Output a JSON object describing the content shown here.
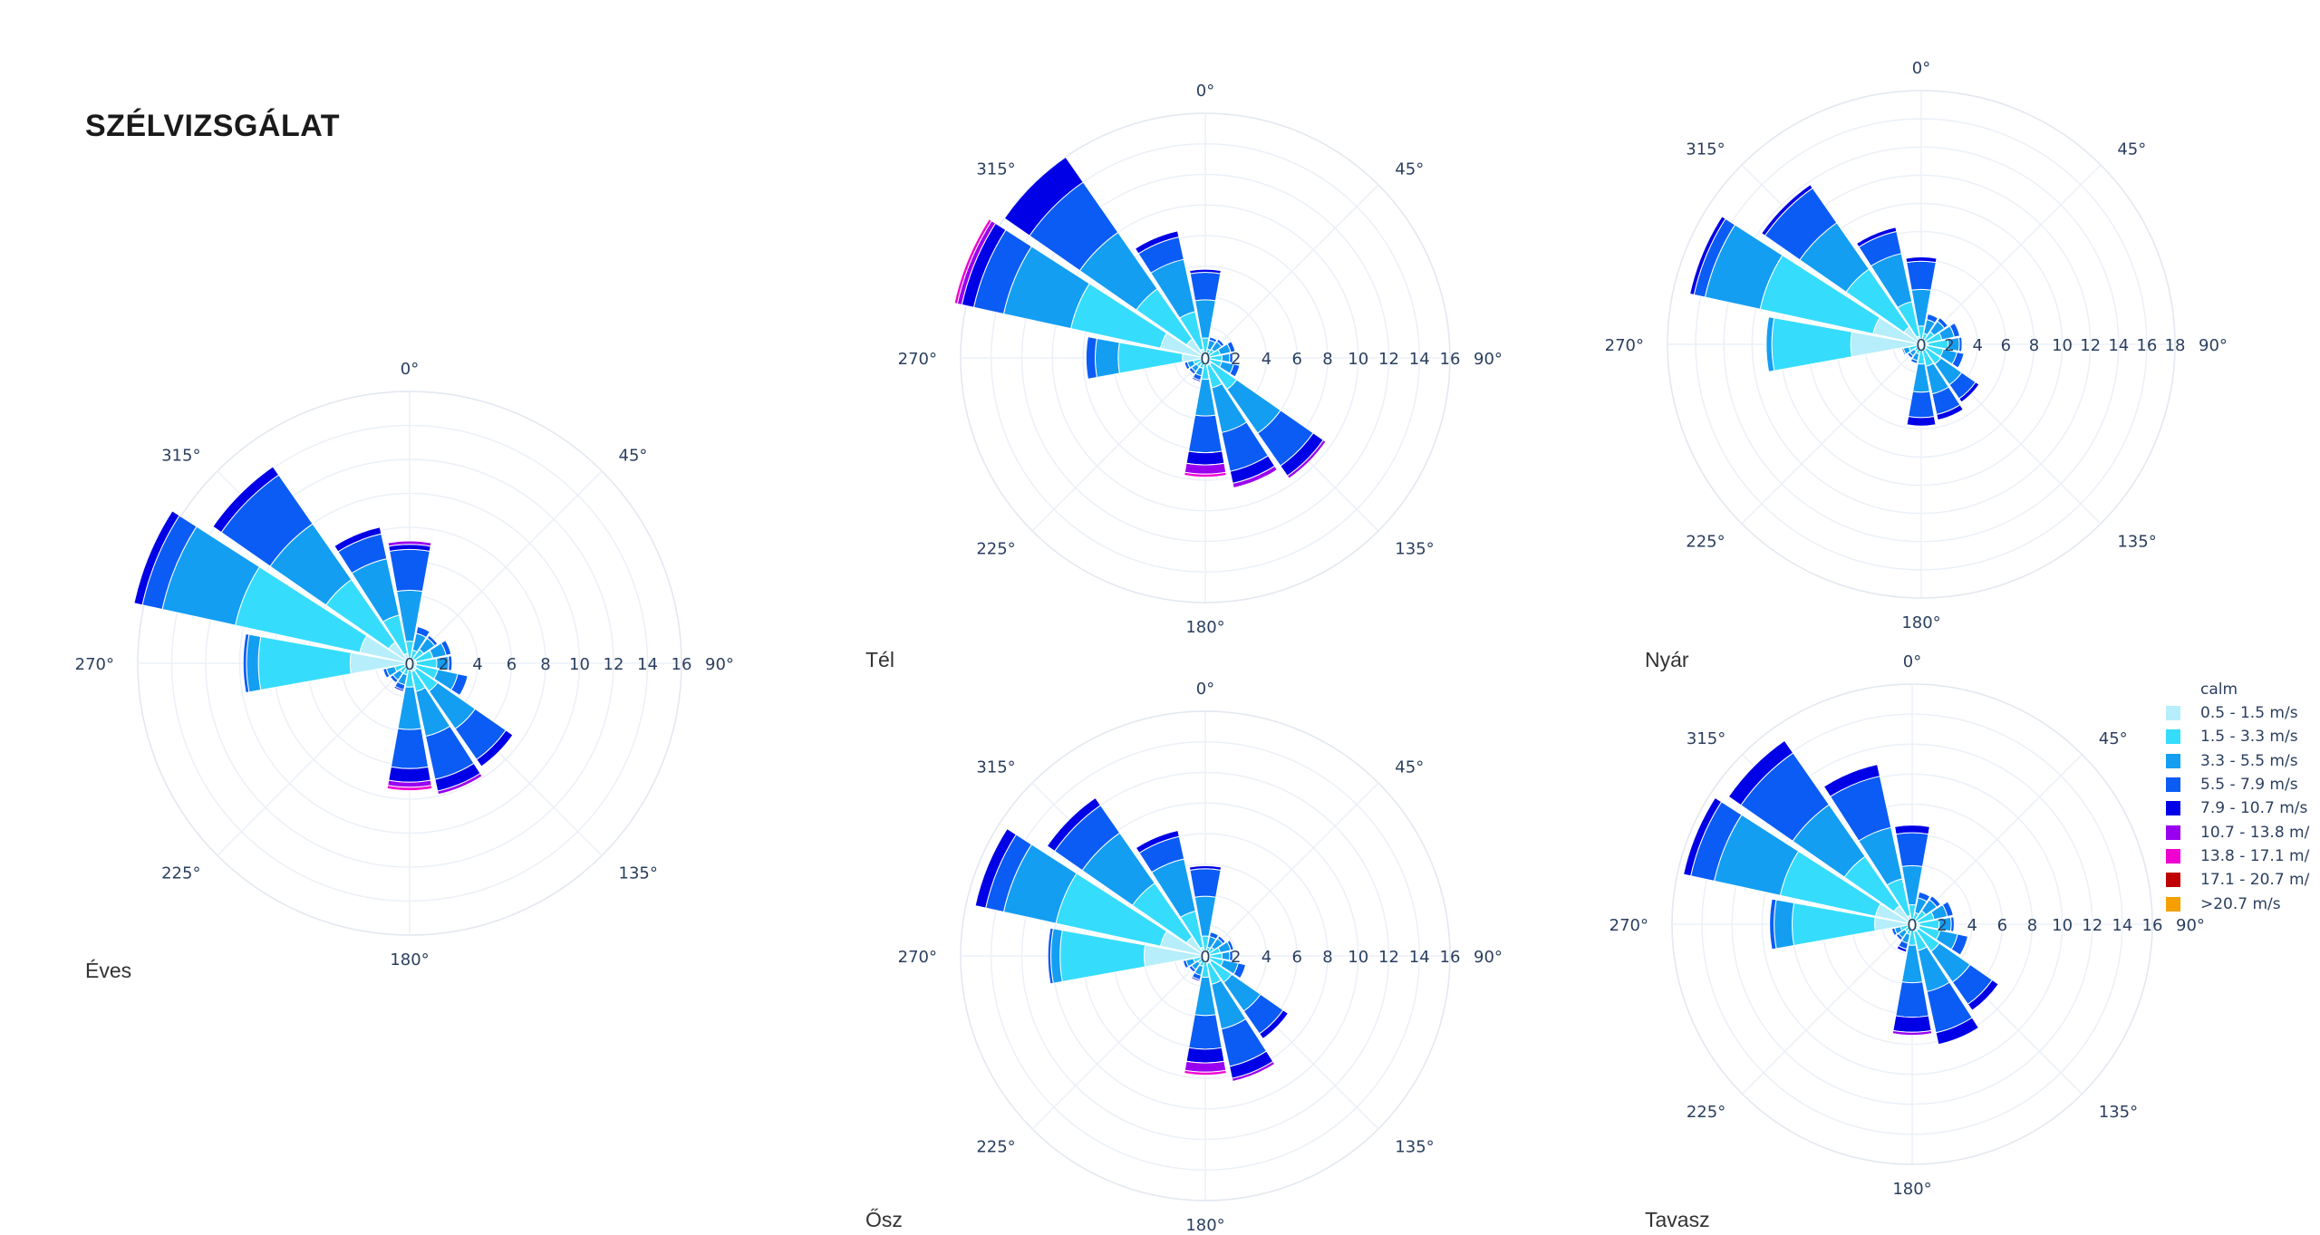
{
  "page": {
    "title": "SZÉLVIZSGÁLAT"
  },
  "legend": {
    "title": "calm",
    "items": [
      {
        "label": "0.5 - 1.5 m/s",
        "color": "#b6eefb"
      },
      {
        "label": "1.5 - 3.3 m/s",
        "color": "#36dcfc"
      },
      {
        "label": "3.3 - 5.5 m/s",
        "color": "#139ef2"
      },
      {
        "label": "5.5 - 7.9 m/s",
        "color": "#0b5cf5"
      },
      {
        "label": "7.9 - 10.7 m/s",
        "color": "#0000e6"
      },
      {
        "label": "10.7 - 13.8 m/",
        "color": "#9a00f0"
      },
      {
        "label": "13.8 - 17.1 m/",
        "color": "#f000d0"
      },
      {
        "label": "17.1 - 20.7 m/",
        "color": "#c00000"
      },
      {
        "label": ">20.7 m/s",
        "color": "#f5a000"
      }
    ]
  },
  "chart_data": [
    {
      "type": "barpolar",
      "caption": "Éves",
      "angular_ticks": [
        "0°",
        "45°",
        "90°",
        "135°",
        "180°",
        "225°",
        "270°",
        "315°"
      ],
      "radial_ticks": [
        0,
        2,
        4,
        6,
        8,
        10,
        12,
        14,
        16
      ],
      "radial_range": [
        0,
        16
      ],
      "directions": [
        0,
        22.5,
        45,
        67.5,
        90,
        112.5,
        135,
        157.5,
        180,
        202.5,
        225,
        247.5,
        270,
        292.5,
        315,
        337.5
      ],
      "stacks": [
        [
          0.3,
          1.0,
          3.0,
          2.4,
          0.3,
          0.2
        ],
        [
          0.2,
          0.6,
          1.0,
          0.4
        ],
        [
          0.3,
          0.7,
          0.8,
          0.2
        ],
        [
          0.4,
          1.0,
          0.8,
          0.3
        ],
        [
          0.4,
          1.2,
          0.7,
          0.2
        ],
        [
          0.4,
          1.3,
          1.2,
          0.6
        ],
        [
          0.5,
          1.5,
          2.7,
          2.2,
          0.5
        ],
        [
          0.5,
          1.2,
          2.7,
          2.6,
          0.7,
          0.2
        ],
        [
          0.4,
          1.0,
          2.5,
          2.3,
          0.8,
          0.3,
          0.2
        ],
        [
          0.2,
          0.5,
          0.6,
          0.3,
          0.1
        ],
        [
          0.2,
          0.5,
          0.5,
          0.2
        ],
        [
          0.3,
          0.6,
          0.5,
          0.2
        ],
        [
          3.5,
          5.4,
          0.7,
          0.2
        ],
        [
          3.0,
          7.5,
          4.4,
          1.2,
          0.5
        ],
        [
          1.5,
          4.5,
          4.0,
          3.5,
          0.6
        ],
        [
          0.6,
          2.3,
          3.4,
          1.5,
          0.4
        ]
      ]
    },
    {
      "type": "barpolar",
      "caption": "Tél",
      "angular_ticks": [
        "0°",
        "45°",
        "90°",
        "135°",
        "180°",
        "225°",
        "270°",
        "315°"
      ],
      "radial_ticks": [
        0,
        2,
        4,
        6,
        8,
        10,
        12,
        14,
        16
      ],
      "radial_range": [
        0,
        16
      ],
      "directions": [
        0,
        22.5,
        45,
        67.5,
        90,
        112.5,
        135,
        157.5,
        180,
        202.5,
        225,
        247.5,
        270,
        292.5,
        315,
        337.5
      ],
      "stacks": [
        [
          0.3,
          1.0,
          2.5,
          1.8,
          0.2
        ],
        [
          0.2,
          0.4,
          0.6,
          0.2
        ],
        [
          0.2,
          0.5,
          0.6,
          0.2
        ],
        [
          0.3,
          0.7,
          0.7,
          0.3
        ],
        [
          0.3,
          0.8,
          0.5,
          0.2
        ],
        [
          0.3,
          0.8,
          0.8,
          0.4
        ],
        [
          0.5,
          2.0,
          3.5,
          2.6,
          0.8,
          0.2
        ],
        [
          0.5,
          1.5,
          3.0,
          2.6,
          0.8,
          0.3
        ],
        [
          0.4,
          1.0,
          2.4,
          2.4,
          0.8,
          0.6,
          0.2
        ],
        [
          0.2,
          0.5,
          0.5,
          0.3,
          0.1
        ],
        [
          0.2,
          0.5,
          0.4,
          0.2
        ],
        [
          0.3,
          0.5,
          0.4,
          0.2
        ],
        [
          1.5,
          4.2,
          1.5,
          0.6
        ],
        [
          3.0,
          6.0,
          4.5,
          2.0,
          0.8,
          0.3,
          0.2
        ],
        [
          1.5,
          4.0,
          4.5,
          4.0,
          2.0
        ],
        [
          0.6,
          2.5,
          3.5,
          1.5,
          0.4
        ]
      ]
    },
    {
      "type": "barpolar",
      "caption": "Nyár",
      "angular_ticks": [
        "0°",
        "45°",
        "90°",
        "135°",
        "180°",
        "225°",
        "270°",
        "315°"
      ],
      "radial_ticks": [
        0,
        2,
        4,
        6,
        8,
        10,
        12,
        14,
        16,
        18
      ],
      "radial_range": [
        0,
        18
      ],
      "directions": [
        0,
        22.5,
        45,
        67.5,
        90,
        112.5,
        135,
        157.5,
        180,
        202.5,
        225,
        247.5,
        270,
        292.5,
        315,
        337.5
      ],
      "stacks": [
        [
          0.3,
          1.0,
          2.6,
          2.0,
          0.3
        ],
        [
          0.2,
          0.6,
          1.0,
          0.4
        ],
        [
          0.3,
          0.8,
          0.9,
          0.3
        ],
        [
          0.4,
          1.1,
          0.9,
          0.4
        ],
        [
          0.5,
          1.4,
          0.8,
          0.2
        ],
        [
          0.4,
          1.2,
          1.0,
          0.5
        ],
        [
          0.4,
          1.3,
          1.8,
          1.2,
          0.3
        ],
        [
          0.4,
          1.2,
          2.0,
          1.5,
          0.4
        ],
        [
          0.4,
          1.0,
          2.0,
          1.8,
          0.6
        ],
        [
          0.2,
          0.5,
          0.5,
          0.2
        ],
        [
          0.2,
          0.4,
          0.4,
          0.2
        ],
        [
          0.3,
          0.6,
          0.4,
          0.1
        ],
        [
          5.0,
          5.6,
          0.4
        ],
        [
          3.5,
          8.2,
          4.0,
          0.8,
          0.3
        ],
        [
          1.5,
          5.0,
          4.0,
          3.0,
          0.3
        ],
        [
          0.6,
          2.5,
          3.5,
          1.6,
          0.3
        ]
      ]
    },
    {
      "type": "barpolar",
      "caption": "Ősz",
      "angular_ticks": [
        "0°",
        "45°",
        "90°",
        "135°",
        "180°",
        "225°",
        "270°",
        "315°"
      ],
      "radial_ticks": [
        0,
        2,
        4,
        6,
        8,
        10,
        12,
        14,
        16
      ],
      "radial_range": [
        0,
        16
      ],
      "directions": [
        0,
        22.5,
        45,
        67.5,
        90,
        112.5,
        135,
        157.5,
        180,
        202.5,
        225,
        247.5,
        270,
        292.5,
        315,
        337.5
      ],
      "stacks": [
        [
          0.3,
          1.0,
          2.6,
          1.8,
          0.2
        ],
        [
          0.2,
          0.4,
          0.7,
          0.3
        ],
        [
          0.2,
          0.5,
          0.7,
          0.2
        ],
        [
          0.3,
          0.7,
          0.7,
          0.2
        ],
        [
          0.3,
          0.8,
          0.5,
          0.2
        ],
        [
          0.3,
          0.9,
          1.0,
          0.5
        ],
        [
          0.5,
          1.6,
          2.3,
          1.8,
          0.4
        ],
        [
          0.5,
          1.4,
          3.0,
          2.5,
          0.8,
          0.2
        ],
        [
          0.4,
          1.0,
          2.5,
          2.2,
          0.9,
          0.6,
          0.2
        ],
        [
          0.2,
          0.5,
          0.6,
          0.3,
          0.1
        ],
        [
          0.2,
          0.4,
          0.5,
          0.2
        ],
        [
          0.3,
          0.5,
          0.5,
          0.2
        ],
        [
          4.0,
          5.5,
          0.6,
          0.2
        ],
        [
          3.0,
          7.0,
          3.5,
          1.2,
          0.7
        ],
        [
          1.5,
          4.3,
          4.0,
          2.2,
          0.6
        ],
        [
          0.6,
          2.4,
          3.5,
          1.5,
          0.4
        ]
      ]
    },
    {
      "type": "barpolar",
      "caption": "Tavasz",
      "angular_ticks": [
        "0°",
        "45°",
        "90°",
        "135°",
        "180°",
        "225°",
        "270°",
        "315°"
      ],
      "radial_ticks": [
        0,
        2,
        4,
        6,
        8,
        10,
        12,
        14,
        16
      ],
      "radial_range": [
        0,
        16
      ],
      "directions": [
        0,
        22.5,
        45,
        67.5,
        90,
        112.5,
        135,
        157.5,
        180,
        202.5,
        225,
        247.5,
        270,
        292.5,
        315,
        337.5
      ],
      "stacks": [
        [
          0.3,
          1.0,
          2.6,
          2.2,
          0.5
        ],
        [
          0.2,
          0.6,
          1.0,
          0.4
        ],
        [
          0.3,
          0.8,
          0.9,
          0.3
        ],
        [
          0.4,
          1.1,
          0.9,
          0.4
        ],
        [
          0.5,
          1.3,
          0.8,
          0.2
        ],
        [
          0.5,
          1.4,
          1.2,
          0.7
        ],
        [
          0.5,
          1.7,
          2.5,
          1.8,
          0.5
        ],
        [
          0.5,
          1.3,
          2.8,
          2.8,
          0.8
        ],
        [
          0.4,
          1.0,
          2.5,
          2.3,
          1.0,
          0.2
        ],
        [
          0.2,
          0.5,
          0.6,
          0.4,
          0.2
        ],
        [
          0.2,
          0.4,
          0.5,
          0.2
        ],
        [
          0.3,
          0.5,
          0.4,
          0.2
        ],
        [
          2.5,
          5.5,
          1.2,
          0.3
        ],
        [
          2.5,
          6.5,
          4.5,
          1.6,
          0.5
        ],
        [
          1.5,
          4.0,
          4.2,
          4.2,
          1.0
        ],
        [
          0.6,
          2.5,
          3.5,
          3.5,
          0.8
        ]
      ]
    }
  ]
}
